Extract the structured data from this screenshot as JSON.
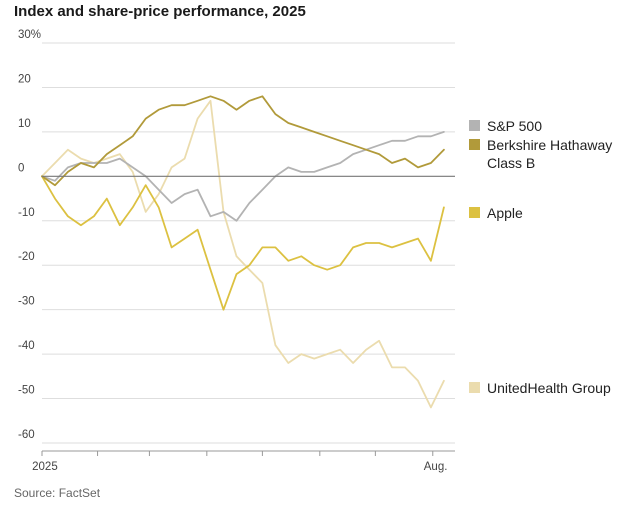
{
  "page": {
    "title": "Index and share-price performance, 2025",
    "source": "Source: FactSet"
  },
  "chart_data": {
    "type": "line",
    "title": "Index and share-price performance, 2025",
    "xlabel": "",
    "ylabel": "",
    "ylim": [
      -60,
      30
    ],
    "y_ticks": [
      30,
      20,
      10,
      0,
      -10,
      -20,
      -30,
      -40,
      -50,
      -60
    ],
    "y_tick_labels": [
      "30%",
      "20",
      "10",
      "0",
      "-10",
      "-20",
      "-30",
      "-40",
      "-50",
      "-60"
    ],
    "x_tick_labels": [
      "2025",
      "Aug."
    ],
    "grid": true,
    "legend_position": "right",
    "colors": {
      "sp500": "#b3b3b3",
      "berkshire": "#b19a3a",
      "apple": "#dcc141",
      "unitedhealth": "#ebdcae",
      "zero_line": "#777777",
      "grid": "#dedede"
    },
    "x": [
      "2025-01-02",
      "2025-01-09",
      "2025-01-16",
      "2025-01-23",
      "2025-01-30",
      "2025-02-06",
      "2025-02-13",
      "2025-02-20",
      "2025-02-27",
      "2025-03-06",
      "2025-03-13",
      "2025-03-20",
      "2025-03-27",
      "2025-04-03",
      "2025-04-10",
      "2025-04-17",
      "2025-04-24",
      "2025-05-01",
      "2025-05-08",
      "2025-05-15",
      "2025-05-22",
      "2025-05-29",
      "2025-06-05",
      "2025-06-12",
      "2025-06-19",
      "2025-06-26",
      "2025-07-03",
      "2025-07-10",
      "2025-07-17",
      "2025-07-24",
      "2025-07-31",
      "2025-08-07"
    ],
    "series": [
      {
        "name": "S&P 500",
        "key": "sp500",
        "values": [
          0,
          -1,
          2,
          3,
          3,
          3,
          4,
          2,
          0,
          -3,
          -6,
          -4,
          -3,
          -9,
          -8,
          -10,
          -6,
          -3,
          0,
          2,
          1,
          1,
          2,
          3,
          5,
          6,
          7,
          8,
          8,
          9,
          9,
          10
        ]
      },
      {
        "name": "Berkshire Hathaway Class B",
        "key": "berkshire",
        "values": [
          0,
          -2,
          1,
          3,
          2,
          5,
          7,
          9,
          13,
          15,
          16,
          16,
          17,
          18,
          17,
          15,
          17,
          18,
          14,
          12,
          11,
          10,
          9,
          8,
          7,
          6,
          5,
          3,
          4,
          2,
          3,
          6
        ]
      },
      {
        "name": "Apple",
        "key": "apple",
        "values": [
          0,
          -5,
          -9,
          -11,
          -9,
          -5,
          -11,
          -7,
          -2,
          -7,
          -16,
          -14,
          -12,
          -21,
          -30,
          -22,
          -20,
          -16,
          -16,
          -19,
          -18,
          -20,
          -21,
          -20,
          -16,
          -15,
          -15,
          -16,
          -15,
          -14,
          -19,
          -7
        ]
      },
      {
        "name": "UnitedHealth Group",
        "key": "unitedhealth",
        "values": [
          0,
          3,
          6,
          4,
          3,
          4,
          5,
          1,
          -8,
          -4,
          2,
          4,
          13,
          17,
          -8,
          -18,
          -21,
          -24,
          -38,
          -42,
          -40,
          -41,
          -40,
          -39,
          -42,
          -39,
          -37,
          -43,
          -43,
          -46,
          -52,
          -46
        ]
      }
    ]
  }
}
